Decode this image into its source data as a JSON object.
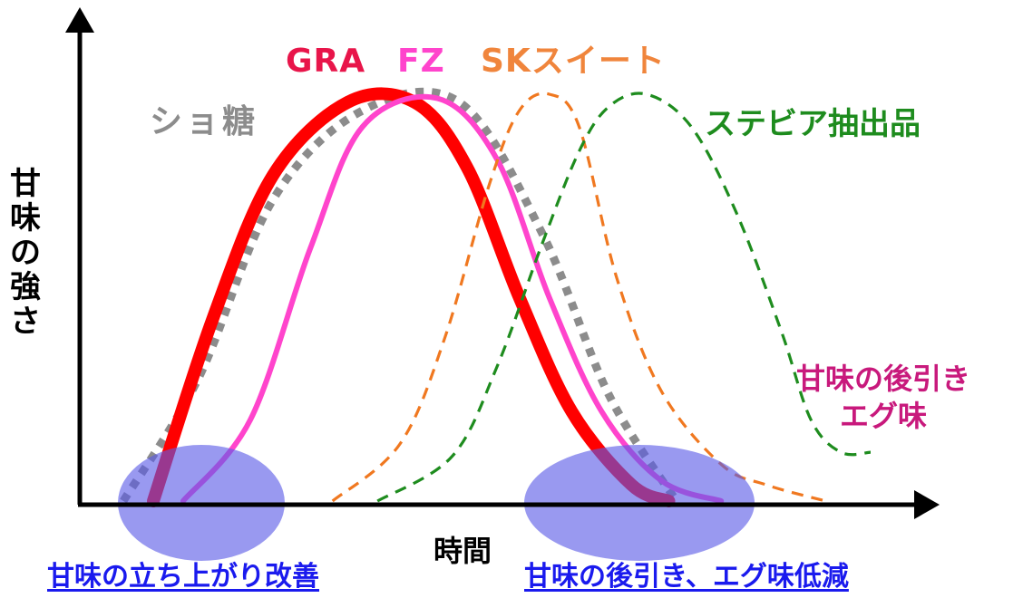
{
  "chart_data": {
    "type": "line",
    "ylabel": "甘味の強さ",
    "xlabel": "時間",
    "series": [
      {
        "name": "ショ糖",
        "color": "#8c8c8c",
        "style": "dotted",
        "x": [
          0.0,
          0.1,
          0.2,
          0.32,
          0.45,
          0.56,
          0.65,
          0.74
        ],
        "y": [
          0.0,
          0.3,
          0.74,
          0.96,
          0.98,
          0.66,
          0.26,
          0.0
        ]
      },
      {
        "name": "GRA",
        "color": "#ff0000",
        "style": "solid-thick",
        "x": [
          0.04,
          0.12,
          0.2,
          0.3,
          0.39,
          0.46,
          0.53,
          0.6,
          0.68,
          0.73
        ],
        "y": [
          0.0,
          0.45,
          0.8,
          0.98,
          0.98,
          0.82,
          0.5,
          0.22,
          0.04,
          0.0
        ]
      },
      {
        "name": "FZ",
        "color": "#ff44cc",
        "style": "solid",
        "x": [
          0.08,
          0.17,
          0.25,
          0.32,
          0.42,
          0.5,
          0.57,
          0.64,
          0.72,
          0.8
        ],
        "y": [
          0.0,
          0.2,
          0.62,
          0.92,
          0.99,
          0.84,
          0.5,
          0.22,
          0.05,
          0.0
        ]
      },
      {
        "name": "SKスイート",
        "color": "#f07820",
        "style": "dashed",
        "x": [
          0.28,
          0.37,
          0.43,
          0.49,
          0.53,
          0.57,
          0.61,
          0.66,
          0.72,
          0.8,
          0.86,
          0.94
        ],
        "y": [
          0.0,
          0.14,
          0.4,
          0.78,
          0.96,
          1.0,
          0.92,
          0.55,
          0.27,
          0.09,
          0.04,
          0.0
        ]
      },
      {
        "name": "ステビア抽出品",
        "color": "#1e8c1e",
        "style": "dashed",
        "x": [
          0.34,
          0.44,
          0.5,
          0.56,
          0.61,
          0.65,
          0.7,
          0.76,
          0.82,
          0.88,
          0.92,
          0.96,
          1.0
        ],
        "y": [
          0.0,
          0.11,
          0.33,
          0.63,
          0.86,
          0.97,
          1.0,
          0.92,
          0.71,
          0.42,
          0.2,
          0.12,
          0.12
        ]
      }
    ],
    "annotations": [
      "甘味の後引き",
      "エグ味",
      "甘味の立ち上がり改善",
      "甘味の後引き、エグ味低減"
    ],
    "highlights": [
      {
        "region": "start",
        "color": "#5a5ae6"
      },
      {
        "region": "end",
        "color": "#5a5ae6"
      }
    ],
    "grid": false
  },
  "labels": {
    "gra": "GRA",
    "fz": "FZ",
    "sk": "SKスイート",
    "sucrose": "ショ糖",
    "stevia": "ステビア抽出品",
    "yaxis": [
      "甘",
      "味",
      "の",
      "強",
      "さ"
    ],
    "xaxis": "時間",
    "note_line1": "甘味の後引き",
    "note_line2": "エグ味",
    "foot_left": "甘味の立ち上がり改善",
    "foot_right": "甘味の後引き、エグ味低減"
  },
  "colors": {
    "gra": "#ff0000",
    "fz": "#ff44cc",
    "sk": "#f07820",
    "sucrose": "#8c8c8c",
    "stevia": "#1e8c1e",
    "note": "#c8197c",
    "foot": "#1a1aee",
    "ellipse": "#5a5ae6"
  }
}
